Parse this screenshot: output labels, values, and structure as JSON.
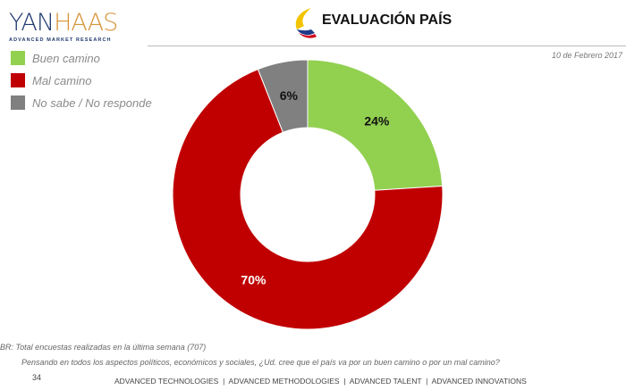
{
  "logo": {
    "name": "YANHAAS",
    "tagline": "ADVANCED MARKET RESEARCH"
  },
  "header": {
    "title": "EVALUACIÓN PAÍS",
    "date": "10 de Febrero 2017"
  },
  "chart_data": {
    "type": "pie",
    "donut": true,
    "title": "EVALUACIÓN PAÍS",
    "categories": [
      "Buen camino",
      "Mal camino",
      "No sabe /  No responde"
    ],
    "values": [
      24,
      70,
      6
    ],
    "labels": [
      "24%",
      "70%",
      "6%"
    ],
    "colors": [
      "#92d050",
      "#c00000",
      "#808080"
    ],
    "label_colors": [
      "#111111",
      "#ffffff",
      "#111111"
    ],
    "legend": "top-left"
  },
  "note": "BR: Total encuestas realizadas en la última semana (707)",
  "question": "Pensando en todos los aspectos políticos, económicos y sociales, ¿Ud. cree que el país va por un buen camino o por un mal camino?",
  "page_number": "34",
  "footer": "ADVANCED TECHNOLOGIES  |  ADVANCED METHODOLOGIES  |  ADVANCED TALENT  |  ADVANCED INNOVATIONS"
}
